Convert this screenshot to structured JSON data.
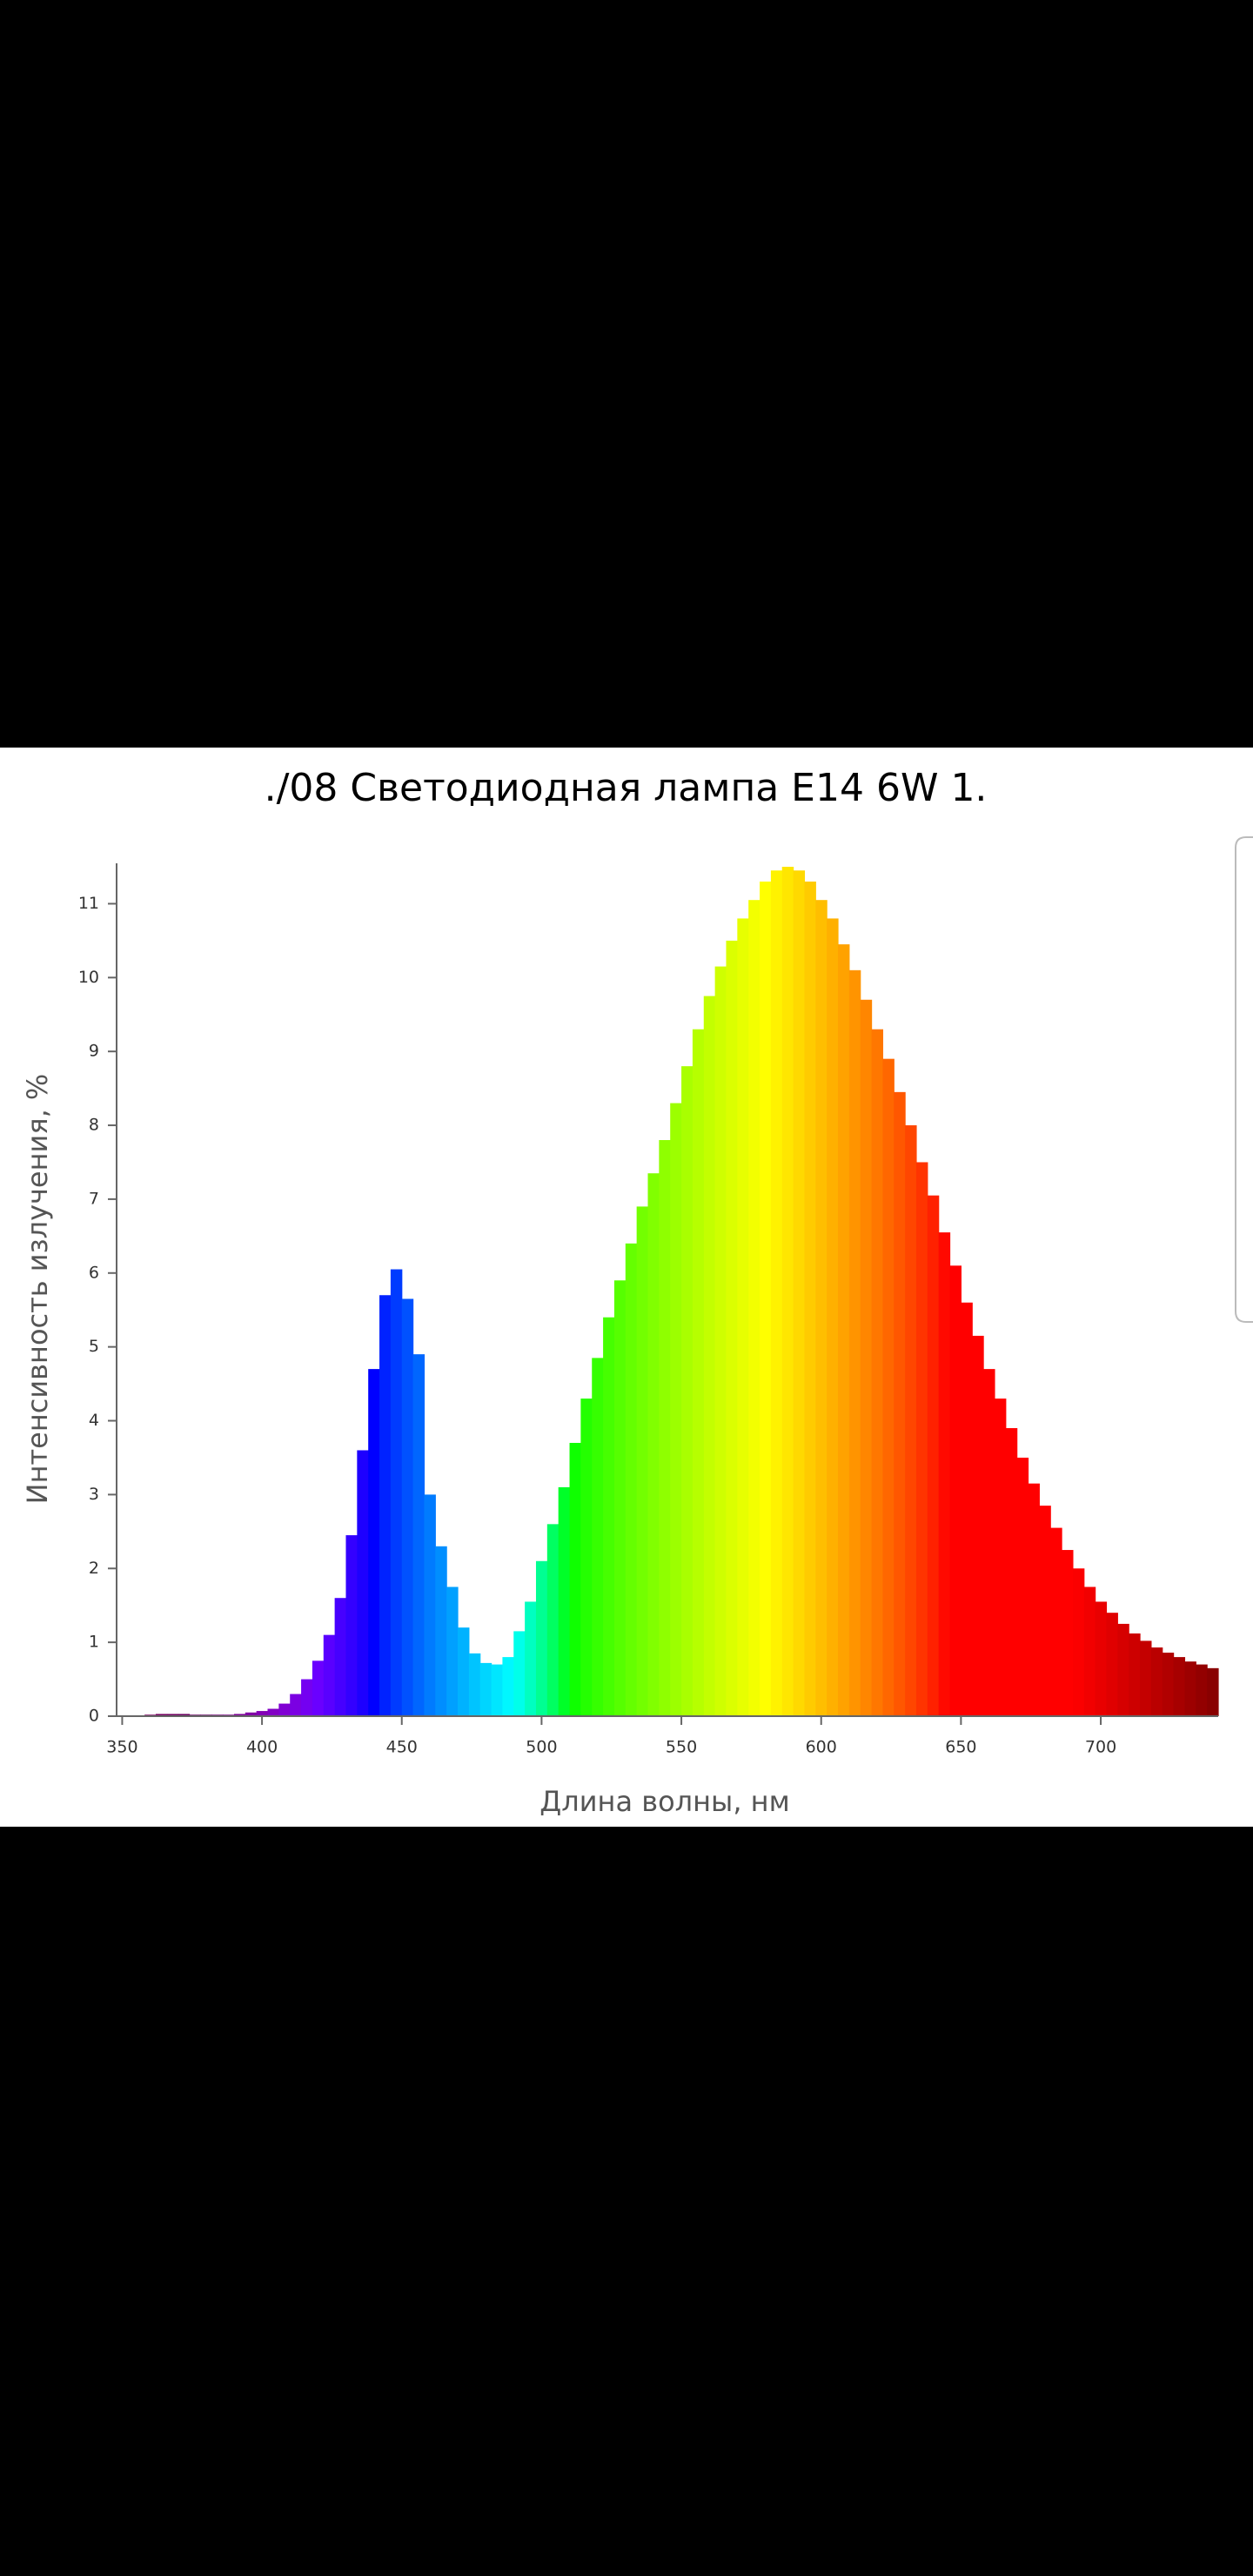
{
  "chart_data": {
    "type": "histogram",
    "title": "./08 Светодиодная лампа E14 6W 1.",
    "xlabel": "Длина волны, нм",
    "ylabel": "Интенсивность излучения, %",
    "bins": [
      358,
      362,
      366,
      370,
      374,
      378,
      382,
      386,
      390,
      394,
      398,
      402,
      406,
      410,
      414,
      418,
      422,
      426,
      430,
      434,
      438,
      442,
      446,
      450,
      454,
      458,
      462,
      466,
      470,
      474,
      478,
      482,
      486,
      490,
      494,
      498,
      502,
      506,
      510,
      514,
      518,
      522,
      526,
      530,
      534,
      538,
      542,
      546,
      550,
      554,
      558,
      562,
      566,
      570,
      574,
      578,
      582,
      586,
      590,
      594,
      598,
      602,
      606,
      610,
      614,
      618,
      622,
      626,
      630,
      634,
      638,
      642,
      646,
      650,
      654,
      658,
      662,
      666,
      670,
      674,
      678,
      682,
      686,
      690,
      694,
      698,
      702,
      706,
      710,
      714,
      718,
      722,
      726,
      730,
      734,
      738,
      742
    ],
    "counts": [
      0.02,
      0.03,
      0.03,
      0.03,
      0.02,
      0.02,
      0.02,
      0.02,
      0.03,
      0.05,
      0.07,
      0.1,
      0.17,
      0.3,
      0.5,
      0.75,
      1.1,
      1.6,
      2.45,
      3.6,
      4.7,
      5.7,
      6.05,
      5.65,
      4.9,
      3.0,
      2.3,
      1.75,
      1.2,
      0.85,
      0.72,
      0.7,
      0.8,
      1.15,
      1.55,
      2.1,
      2.6,
      3.1,
      3.7,
      4.3,
      4.85,
      5.4,
      5.9,
      6.4,
      6.9,
      7.35,
      7.8,
      8.3,
      8.8,
      9.3,
      9.75,
      10.15,
      10.5,
      10.8,
      11.05,
      11.3,
      11.45,
      11.5,
      11.45,
      11.3,
      11.05,
      10.8,
      10.45,
      10.1,
      9.7,
      9.3,
      8.9,
      8.45,
      8.0,
      7.5,
      7.05,
      6.55,
      6.1,
      5.6,
      5.15,
      4.7,
      4.3,
      3.9,
      3.5,
      3.15,
      2.85,
      2.55,
      2.25,
      2.0,
      1.75,
      1.55,
      1.4,
      1.25,
      1.12,
      1.02,
      0.93,
      0.86,
      0.8,
      0.74,
      0.7,
      0.65
    ],
    "xlim": [
      348,
      742
    ],
    "ylim": [
      0,
      11.5
    ],
    "xticks": [
      350,
      400,
      450,
      500,
      550,
      600,
      650,
      700
    ],
    "yticks": [
      0,
      1,
      2,
      3,
      4,
      5,
      6,
      7,
      8,
      9,
      10,
      11
    ]
  }
}
